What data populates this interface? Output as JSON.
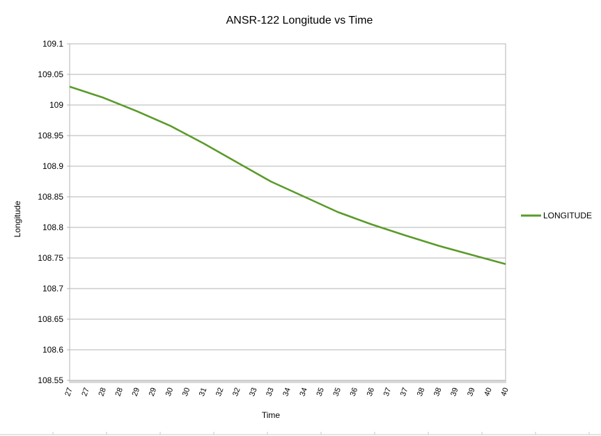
{
  "chart_data": {
    "type": "line",
    "title": "ANSR-122 Longitude vs Time",
    "xlabel": "Time",
    "ylabel": "Longitude",
    "ylim": [
      108.55,
      109.1
    ],
    "y_ticks": [
      "109.1",
      "109.05",
      "109",
      "108.95",
      "108.9",
      "108.85",
      "108.8",
      "108.75",
      "108.7",
      "108.65",
      "108.6",
      "108.55"
    ],
    "x_tick_labels": [
      "27",
      "27",
      "28",
      "28",
      "29",
      "29",
      "30",
      "30",
      "31",
      "32",
      "32",
      "33",
      "33",
      "34",
      "34",
      "35",
      "35",
      "36",
      "36",
      "37",
      "37",
      "38",
      "38",
      "39",
      "39",
      "40",
      "40"
    ],
    "grid": true,
    "legend_position": "right",
    "series": [
      {
        "name": "LONGITUDE",
        "color": "#5a9a2a",
        "x": [
          27,
          28,
          29,
          30,
          31,
          32,
          33,
          34,
          35,
          36,
          37,
          38,
          39,
          40
        ],
        "y": [
          109.03,
          109.012,
          108.99,
          108.966,
          108.937,
          108.906,
          108.875,
          108.85,
          108.825,
          108.805,
          108.787,
          108.77,
          108.755,
          108.74
        ]
      }
    ]
  }
}
